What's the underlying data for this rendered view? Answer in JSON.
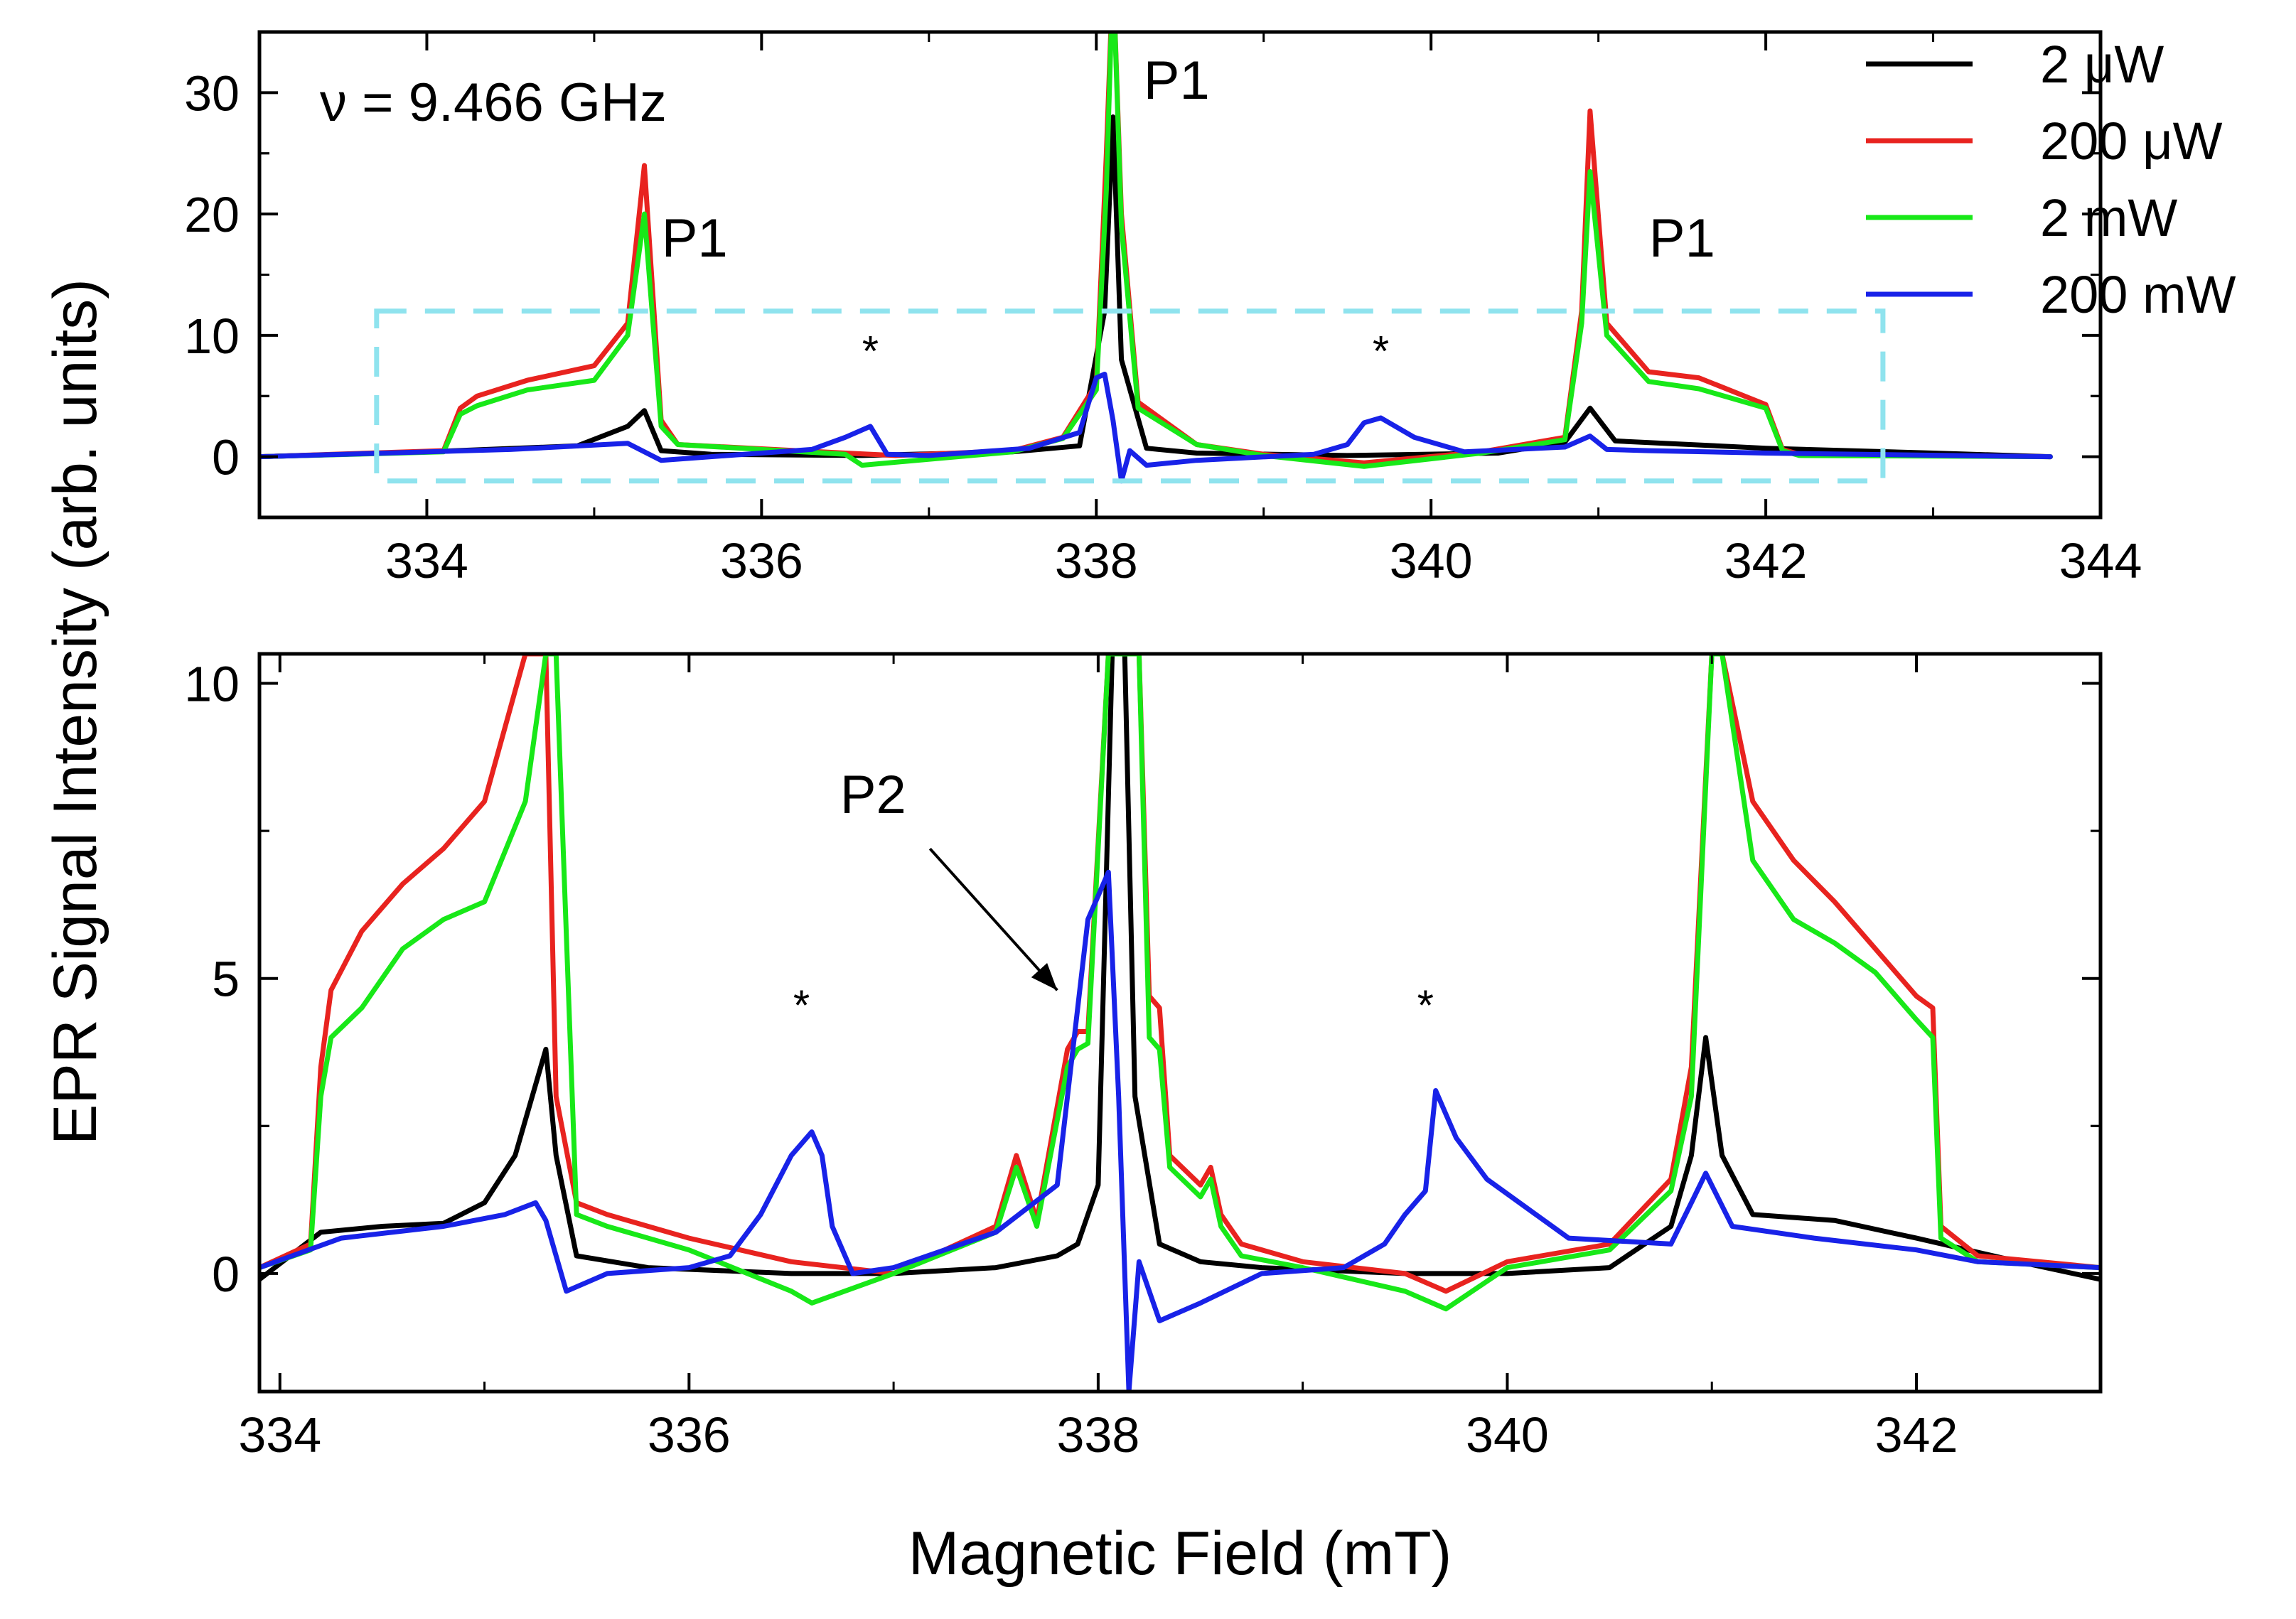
{
  "chart_data": [
    {
      "panel": "top",
      "type": "line",
      "xlim": [
        333,
        344
      ],
      "ylim": [
        -5,
        35
      ],
      "xticks": [
        334,
        336,
        338,
        340,
        342,
        344
      ],
      "yticks": [
        0,
        10,
        20,
        30
      ],
      "xtick_labels": [
        "334",
        "336",
        "338",
        "340",
        "342",
        "344"
      ],
      "ytick_labels": [
        "0",
        "10",
        "20",
        "30"
      ],
      "frequency_label": "ν = 9.466 GHz",
      "annotations": [
        {
          "text": "P1",
          "x": 335.6,
          "y": 16.5
        },
        {
          "text": "P1",
          "x": 338.48,
          "y": 29.5
        },
        {
          "text": "P1",
          "x": 341.5,
          "y": 16.5
        },
        {
          "text": "*",
          "x": 336.65,
          "y": 7.5
        },
        {
          "text": "*",
          "x": 339.7,
          "y": 7.5
        }
      ],
      "zoom_box": {
        "x": [
          333.7,
          342.7
        ],
        "y": [
          -2,
          12
        ]
      },
      "series": [
        {
          "name": "2 μW",
          "color": "#000000",
          "x": [
            333,
            334,
            334.9,
            335.2,
            335.3,
            335.4,
            335.7,
            336.6,
            337.5,
            337.9,
            338.05,
            338.1,
            338.15,
            338.3,
            338.6,
            339.5,
            340.4,
            340.8,
            340.95,
            341.1,
            342,
            343,
            343.7
          ],
          "y": [
            0,
            0.4,
            0.9,
            2.5,
            3.8,
            0.5,
            0.2,
            0.1,
            0.4,
            0.9,
            12,
            28,
            8,
            0.7,
            0.3,
            0.1,
            0.3,
            1.2,
            4,
            1.3,
            0.7,
            0.3,
            0
          ]
        },
        {
          "name": "200 μW",
          "color": "#e8231f",
          "x": [
            333,
            334.1,
            334.2,
            334.3,
            334.6,
            335.0,
            335.2,
            335.3,
            335.4,
            335.5,
            336.5,
            336.8,
            337.5,
            337.8,
            338.0,
            338.06,
            338.1,
            338.15,
            338.25,
            338.6,
            339.0,
            339.6,
            340.3,
            340.8,
            340.9,
            340.95,
            341.05,
            341.3,
            341.6,
            342.0,
            342.1,
            342.2,
            343.7
          ],
          "y": [
            0,
            0.5,
            4,
            5,
            6.3,
            7.5,
            11,
            24,
            3,
            1,
            0.3,
            0.1,
            0.5,
            1.6,
            6,
            25,
            40,
            20,
            4.5,
            1.0,
            0.2,
            -0.5,
            0.4,
            1.6,
            12,
            28.5,
            11,
            7.0,
            6.5,
            4.3,
            0.6,
            0.2,
            0
          ]
        },
        {
          "name": "2 mW",
          "color": "#18e818",
          "x": [
            333,
            334.1,
            334.2,
            334.3,
            334.6,
            335.0,
            335.2,
            335.3,
            335.4,
            335.5,
            336.5,
            336.6,
            337.5,
            337.8,
            338.0,
            338.06,
            338.1,
            338.15,
            338.25,
            338.6,
            339.0,
            339.6,
            340.3,
            340.8,
            340.9,
            340.95,
            341.05,
            341.3,
            341.6,
            342.0,
            342.1,
            342.2,
            343.7
          ],
          "y": [
            0,
            0.4,
            3.5,
            4.2,
            5.5,
            6.3,
            10,
            20,
            2.5,
            1,
            0.2,
            -0.7,
            0.4,
            1.5,
            5.5,
            22,
            40,
            19,
            4,
            1.0,
            0.1,
            -0.8,
            0.3,
            1.4,
            11,
            23.5,
            10,
            6.2,
            5.6,
            4.0,
            0.5,
            0.1,
            0
          ]
        },
        {
          "name": "200 mW",
          "color": "#1822e8",
          "x": [
            333,
            334.5,
            335.2,
            335.4,
            335.8,
            336.3,
            336.5,
            336.65,
            336.75,
            337.0,
            337.6,
            337.9,
            338.0,
            338.05,
            338.1,
            338.15,
            338.2,
            338.3,
            338.6,
            339.3,
            339.5,
            339.6,
            339.7,
            339.9,
            340.2,
            340.8,
            340.95,
            341.05,
            341.3,
            342.0,
            343.7
          ],
          "y": [
            0,
            0.6,
            1.1,
            -0.3,
            0.1,
            0.6,
            1.6,
            2.5,
            0.2,
            0.1,
            0.7,
            2.0,
            6.5,
            6.8,
            3,
            -2,
            0.5,
            -0.7,
            -0.3,
            0.2,
            1.0,
            2.8,
            3.2,
            1.6,
            0.4,
            0.8,
            1.7,
            0.6,
            0.5,
            0.3,
            0
          ]
        }
      ]
    },
    {
      "panel": "bottom",
      "type": "line",
      "xlim": [
        333.9,
        342.9
      ],
      "ylim": [
        -2,
        10.5
      ],
      "xticks": [
        334,
        336,
        338,
        340,
        342
      ],
      "yticks": [
        0,
        5,
        10
      ],
      "xtick_labels": [
        "334",
        "336",
        "338",
        "340",
        "342"
      ],
      "ytick_labels": [
        "0",
        "5",
        "10"
      ],
      "xlabel": "Magnetic Field (mT)",
      "ylabel": "EPR Signal Intensity (arb. units)",
      "annotations": [
        {
          "text": "P2",
          "x": 336.9,
          "y": 7.8,
          "arrow_to": [
            337.8,
            4.8
          ]
        },
        {
          "text": "*",
          "x": 336.55,
          "y": 4.3
        },
        {
          "text": "*",
          "x": 339.6,
          "y": 4.3
        }
      ],
      "series": [
        {
          "name": "2 μW",
          "color": "#000000",
          "x": [
            333.9,
            334.2,
            334.5,
            334.8,
            335.0,
            335.15,
            335.25,
            335.3,
            335.35,
            335.45,
            335.8,
            336.5,
            337.0,
            337.5,
            337.8,
            337.9,
            338.0,
            338.08,
            338.12,
            338.18,
            338.3,
            338.5,
            338.8,
            339.5,
            340.0,
            340.5,
            340.8,
            340.9,
            340.97,
            341.05,
            341.2,
            341.6,
            342.0,
            342.5,
            342.9
          ],
          "y": [
            -0.1,
            0.7,
            0.8,
            0.85,
            1.2,
            2.0,
            3.2,
            3.8,
            2.0,
            0.3,
            0.1,
            0.0,
            0.0,
            0.1,
            0.3,
            0.5,
            1.5,
            12,
            12,
            3,
            0.5,
            0.2,
            0.1,
            0.0,
            0.0,
            0.1,
            0.8,
            2,
            4.0,
            2.0,
            1.0,
            0.9,
            0.6,
            0.2,
            -0.1
          ]
        },
        {
          "name": "200 μW",
          "color": "#e8231f",
          "x": [
            333.9,
            334.15,
            334.2,
            334.25,
            334.4,
            334.6,
            334.8,
            335.0,
            335.2,
            335.3,
            335.35,
            335.45,
            335.6,
            336.0,
            336.5,
            337.0,
            337.5,
            337.6,
            337.7,
            337.85,
            337.9,
            337.95,
            338.05,
            338.2,
            338.25,
            338.3,
            338.35,
            338.5,
            338.55,
            338.6,
            338.7,
            339.0,
            339.5,
            339.7,
            340.0,
            340.5,
            340.8,
            340.9,
            341.0,
            341.05,
            341.2,
            341.4,
            341.6,
            341.8,
            342.0,
            342.08,
            342.12,
            342.3,
            342.9
          ],
          "y": [
            0.1,
            0.5,
            3.5,
            4.8,
            5.8,
            6.6,
            7.2,
            8.0,
            10.5,
            10.5,
            3.0,
            1.2,
            1.0,
            0.6,
            0.2,
            0.0,
            0.8,
            2.0,
            0.9,
            3.8,
            4.1,
            4.1,
            10.5,
            10.5,
            4.7,
            4.5,
            2.0,
            1.5,
            1.8,
            1.0,
            0.5,
            0.2,
            0.0,
            -0.3,
            0.2,
            0.5,
            1.6,
            3.5,
            10.5,
            10.5,
            8.0,
            7.0,
            6.3,
            5.5,
            4.7,
            4.5,
            0.8,
            0.3,
            0.1
          ]
        },
        {
          "name": "2 mW",
          "color": "#18e818",
          "x": [
            333.9,
            334.15,
            334.2,
            334.25,
            334.4,
            334.6,
            334.8,
            335.0,
            335.2,
            335.3,
            335.35,
            335.45,
            335.6,
            336.0,
            336.5,
            336.6,
            337.0,
            337.5,
            337.6,
            337.7,
            337.85,
            337.9,
            337.95,
            338.05,
            338.2,
            338.25,
            338.3,
            338.35,
            338.5,
            338.55,
            338.6,
            338.7,
            339.0,
            339.5,
            339.7,
            340.0,
            340.5,
            340.8,
            340.9,
            341.0,
            341.05,
            341.2,
            341.4,
            341.6,
            341.8,
            342.0,
            342.08,
            342.12,
            342.3,
            342.9
          ],
          "y": [
            0.1,
            0.4,
            3.0,
            4.0,
            4.5,
            5.5,
            6.0,
            6.3,
            8.0,
            10.5,
            10.5,
            1.0,
            0.8,
            0.4,
            -0.3,
            -0.5,
            0.0,
            0.7,
            1.8,
            0.8,
            3.5,
            3.8,
            3.9,
            10.5,
            10.5,
            4.0,
            3.8,
            1.8,
            1.3,
            1.6,
            0.8,
            0.3,
            0.1,
            -0.3,
            -0.6,
            0.1,
            0.4,
            1.4,
            3.0,
            10.5,
            10.5,
            7.0,
            6.0,
            5.6,
            5.1,
            4.3,
            4.0,
            0.6,
            0.2,
            0.1
          ]
        },
        {
          "name": "200 mW",
          "color": "#1822e8",
          "x": [
            333.9,
            334.3,
            334.8,
            335.1,
            335.25,
            335.3,
            335.4,
            335.6,
            336.0,
            336.2,
            336.35,
            336.5,
            336.6,
            336.65,
            336.7,
            336.8,
            337.0,
            337.5,
            337.8,
            337.95,
            338.05,
            338.1,
            338.15,
            338.2,
            338.3,
            338.5,
            338.8,
            339.2,
            339.4,
            339.5,
            339.6,
            339.65,
            339.75,
            339.9,
            340.1,
            340.3,
            340.8,
            340.9,
            340.97,
            341.1,
            341.5,
            342.0,
            342.3,
            342.9
          ],
          "y": [
            0.1,
            0.6,
            0.8,
            1.0,
            1.2,
            0.9,
            -0.3,
            0.0,
            0.1,
            0.3,
            1.0,
            2.0,
            2.4,
            2.0,
            0.8,
            0.0,
            0.1,
            0.7,
            1.5,
            6.0,
            6.8,
            3.0,
            -2.0,
            0.2,
            -0.8,
            -0.5,
            0.0,
            0.1,
            0.5,
            1.0,
            1.4,
            3.1,
            2.3,
            1.6,
            1.1,
            0.6,
            0.5,
            1.2,
            1.7,
            0.8,
            0.6,
            0.4,
            0.2,
            0.1
          ]
        }
      ]
    }
  ]
}
